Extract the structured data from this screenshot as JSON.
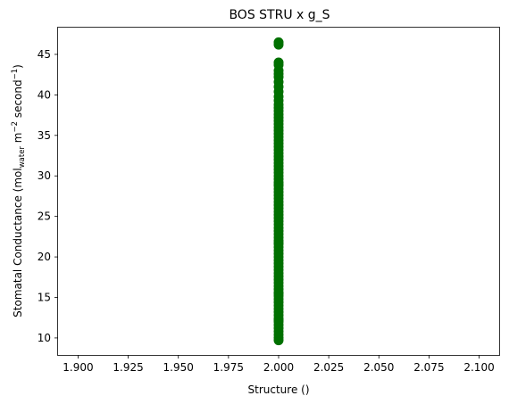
{
  "chart_data": {
    "type": "scatter",
    "title": "BOS STRU x g_S",
    "xlabel": "Structure ()",
    "ylabel_parts": {
      "prefix": "Stomatal Conductance (mol",
      "subscript": "water",
      "mid1": " m",
      "sup1": "−2",
      "mid2": " second",
      "sup2": "−1",
      "suffix": ")"
    },
    "xlim": [
      1.89,
      2.11
    ],
    "ylim": [
      7.9,
      48.3
    ],
    "xticks": [
      "1.900",
      "1.925",
      "1.950",
      "1.975",
      "2.000",
      "2.025",
      "2.050",
      "2.075",
      "2.100"
    ],
    "xtick_values": [
      1.9,
      1.925,
      1.95,
      1.975,
      2.0,
      2.025,
      2.05,
      2.075,
      2.1
    ],
    "yticks": [
      "10",
      "15",
      "20",
      "25",
      "30",
      "35",
      "40",
      "45"
    ],
    "ytick_values": [
      10,
      15,
      20,
      25,
      30,
      35,
      40,
      45
    ],
    "grid": false,
    "marker_color": "#007000",
    "series": [
      {
        "x": [
          2.0,
          2.0,
          2.0,
          2.0,
          2.0,
          2.0,
          2.0,
          2.0,
          2.0,
          2.0,
          2.0,
          2.0,
          2.0,
          2.0,
          2.0,
          2.0,
          2.0,
          2.0,
          2.0,
          2.0,
          2.0,
          2.0,
          2.0,
          2.0,
          2.0,
          2.0,
          2.0,
          2.0,
          2.0,
          2.0,
          2.0,
          2.0,
          2.0,
          2.0,
          2.0,
          2.0,
          2.0,
          2.0,
          2.0,
          2.0,
          2.0,
          2.0,
          2.0,
          2.0,
          2.0,
          2.0,
          2.0,
          2.0,
          2.0,
          2.0,
          2.0,
          2.0,
          2.0,
          2.0,
          2.0,
          2.0,
          2.0,
          2.0,
          2.0,
          2.0,
          2.0,
          2.0,
          2.0,
          2.0,
          2.0,
          2.0,
          2.0,
          2.0,
          2.0,
          2.0,
          2.0,
          2.0,
          2.0,
          2.0,
          2.0,
          2.0,
          2.0,
          2.0,
          2.0,
          2.0,
          2.0,
          2.0,
          2.0,
          2.0,
          2.0,
          2.0,
          2.0,
          2.0,
          2.0,
          2.0
        ],
        "y": [
          9.7,
          10.0,
          10.4,
          10.8,
          11.2,
          11.6,
          12.0,
          12.4,
          12.8,
          13.2,
          13.6,
          14.0,
          14.4,
          14.8,
          15.2,
          15.6,
          16.0,
          16.4,
          16.8,
          17.2,
          17.6,
          18.0,
          18.4,
          18.8,
          19.2,
          19.6,
          20.0,
          20.4,
          20.8,
          21.2,
          21.6,
          22.0,
          22.4,
          22.8,
          23.2,
          23.6,
          24.0,
          24.4,
          24.8,
          25.2,
          25.6,
          26.0,
          26.4,
          26.8,
          27.2,
          27.6,
          28.0,
          28.4,
          28.8,
          29.2,
          29.6,
          30.0,
          30.4,
          30.8,
          31.2,
          31.6,
          32.0,
          32.4,
          32.8,
          33.2,
          33.6,
          34.0,
          34.4,
          34.8,
          35.2,
          35.6,
          36.0,
          36.4,
          36.8,
          37.2,
          37.6,
          38.0,
          38.4,
          38.8,
          39.3,
          39.8,
          40.4,
          41.0,
          41.6,
          42.2,
          42.6,
          43.0,
          43.7,
          44.0,
          46.2,
          46.5,
          12.2,
          15.5,
          21.7,
          28.9
        ]
      }
    ]
  }
}
